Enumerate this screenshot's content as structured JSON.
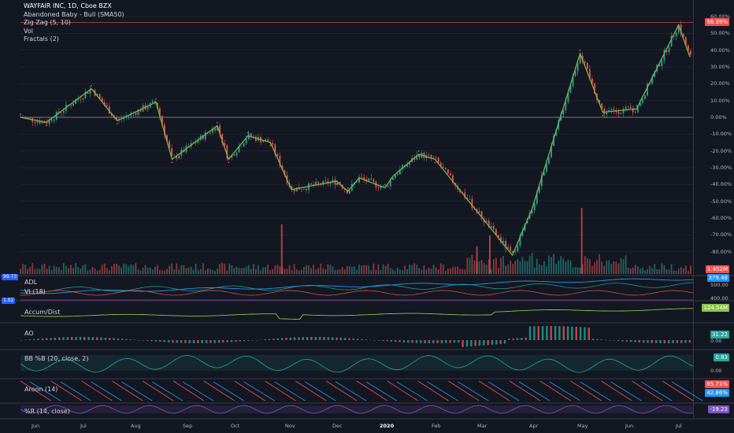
{
  "header": {
    "title": "WAYFAIR INC, 1D, Cboe BZX",
    "indicators": [
      "Abandoned Baby - Bull (SMA50)",
      "Zig Zag (5, 10)",
      "Vol",
      "Fractals (2)"
    ]
  },
  "colors": {
    "up": "#26a69a",
    "down": "#ef5350",
    "zigzag": "#7cb342",
    "bg": "#131722",
    "grid": "#2a2e39"
  },
  "price_panel": {
    "y_ticks": [
      "60.00%",
      "50.00%",
      "40.00%",
      "30.00%",
      "20.00%",
      "10.00%",
      "0.00%",
      "-10.00%",
      "-20.00%",
      "-30.00%",
      "-40.00%",
      "-50.00%",
      "-60.00%",
      "-70.00%",
      "-80.00%"
    ],
    "current_value": "56.39%",
    "volume_value": "1.452M",
    "left_value": "99.73"
  },
  "sub_panels": [
    {
      "id": "adl-vi",
      "labels": [
        "ADL",
        "VI (18)"
      ],
      "right_ticks": [
        "500.00",
        "400.00"
      ],
      "tag": "379.48",
      "left_tag": "1.02"
    },
    {
      "id": "accum",
      "labels": [
        "Accum/Dist"
      ],
      "right_ticks": [],
      "tag": "124.54M"
    },
    {
      "id": "ao",
      "labels": [
        "AO"
      ],
      "right_ticks": [
        "0.00"
      ],
      "tag": "31.22"
    },
    {
      "id": "bb",
      "labels": [
        "BB %B (20, close, 2)"
      ],
      "right_ticks": [
        "0.00"
      ],
      "tag": "0.83"
    },
    {
      "id": "aroon",
      "labels": [
        "Aroon (14)"
      ],
      "right_ticks": [],
      "tag": "85.71%",
      "tag2": "42.86%"
    },
    {
      "id": "wr",
      "labels": [
        "%R (14, close)"
      ],
      "right_ticks": [],
      "tag": "-19.23"
    }
  ],
  "x_axis": [
    "Jun",
    "Jul",
    "Aug",
    "Sep",
    "Oct",
    "Nov",
    "Dec",
    "2020",
    "Feb",
    "Mar",
    "Apr",
    "May",
    "Jun",
    "Jul"
  ],
  "chart_data": {
    "type": "line",
    "title": "WAYFAIR INC, 1D, Cboe BZX",
    "ylabel": "",
    "ylim": [
      -90,
      65
    ],
    "y_unit": "%",
    "zigzag": {
      "x": [
        "May 20",
        "Jun 5",
        "Jul 3",
        "Jul 19",
        "Aug 12",
        "Aug 22",
        "Sep 19",
        "Sep 26",
        "Oct 8",
        "Oct 22",
        "Nov 4",
        "Dec 2",
        "Dec 9",
        "Dec 16",
        "Jan 1",
        "Jan 6",
        "Jan 22",
        "Feb 1",
        "Mar 20",
        "Apr 1",
        "May 1",
        "May 15",
        "Jun 5",
        "Jul 1",
        "Jul 8"
      ],
      "y": [
        0,
        -3,
        17,
        -2,
        9,
        -25,
        -5,
        -25,
        -11,
        -15,
        -43,
        -38,
        -44,
        -36,
        -42,
        -35,
        -22,
        -25,
        -82,
        -55,
        38,
        3,
        5,
        55,
        36
      ]
    },
    "volume_spikes": {
      "x": [
        "Oct 29",
        "Feb 27",
        "Mar 6",
        "May 2"
      ],
      "value_m": [
        4.5,
        2.5,
        3.5,
        6.0
      ]
    },
    "series": []
  }
}
